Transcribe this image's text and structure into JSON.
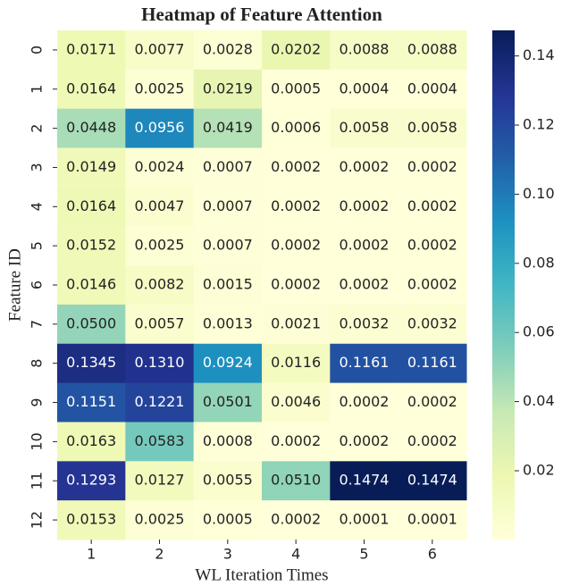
{
  "chart_data": {
    "type": "heatmap",
    "title": "Heatmap of Feature Attention",
    "xlabel": "WL Iteration Times",
    "ylabel": "Feature ID",
    "x_categories": [
      "1",
      "2",
      "3",
      "4",
      "5",
      "6"
    ],
    "y_categories": [
      "0",
      "1",
      "2",
      "3",
      "4",
      "5",
      "6",
      "7",
      "8",
      "9",
      "10",
      "11",
      "12"
    ],
    "values": [
      [
        0.0171,
        0.0077,
        0.0028,
        0.0202,
        0.0088,
        0.0088
      ],
      [
        0.0164,
        0.0025,
        0.0219,
        0.0005,
        0.0004,
        0.0004
      ],
      [
        0.0448,
        0.0956,
        0.0419,
        0.0006,
        0.0058,
        0.0058
      ],
      [
        0.0149,
        0.0024,
        0.0007,
        0.0002,
        0.0002,
        0.0002
      ],
      [
        0.0164,
        0.0047,
        0.0007,
        0.0002,
        0.0002,
        0.0002
      ],
      [
        0.0152,
        0.0025,
        0.0007,
        0.0002,
        0.0002,
        0.0002
      ],
      [
        0.0146,
        0.0082,
        0.0015,
        0.0002,
        0.0002,
        0.0002
      ],
      [
        0.05,
        0.0057,
        0.0013,
        0.0021,
        0.0032,
        0.0032
      ],
      [
        0.1345,
        0.131,
        0.0924,
        0.0116,
        0.1161,
        0.1161
      ],
      [
        0.1151,
        0.1221,
        0.0501,
        0.0046,
        0.0002,
        0.0002
      ],
      [
        0.0163,
        0.0583,
        0.0008,
        0.0002,
        0.0002,
        0.0002
      ],
      [
        0.1293,
        0.0127,
        0.0055,
        0.051,
        0.1474,
        0.1474
      ],
      [
        0.0153,
        0.0025,
        0.0005,
        0.0002,
        0.0001,
        0.0001
      ]
    ],
    "value_labels": [
      [
        "0.0171",
        "0.0077",
        "0.0028",
        "0.0202",
        "0.0088",
        "0.0088"
      ],
      [
        "0.0164",
        "0.0025",
        "0.0219",
        "0.0005",
        "0.0004",
        "0.0004"
      ],
      [
        "0.0448",
        "0.0956",
        "0.0419",
        "0.0006",
        "0.0058",
        "0.0058"
      ],
      [
        "0.0149",
        "0.0024",
        "0.0007",
        "0.0002",
        "0.0002",
        "0.0002"
      ],
      [
        "0.0164",
        "0.0047",
        "0.0007",
        "0.0002",
        "0.0002",
        "0.0002"
      ],
      [
        "0.0152",
        "0.0025",
        "0.0007",
        "0.0002",
        "0.0002",
        "0.0002"
      ],
      [
        "0.0146",
        "0.0082",
        "0.0015",
        "0.0002",
        "0.0002",
        "0.0002"
      ],
      [
        "0.0500",
        "0.0057",
        "0.0013",
        "0.0021",
        "0.0032",
        "0.0032"
      ],
      [
        "0.1345",
        "0.1310",
        "0.0924",
        "0.0116",
        "0.1161",
        "0.1161"
      ],
      [
        "0.1151",
        "0.1221",
        "0.0501",
        "0.0046",
        "0.0002",
        "0.0002"
      ],
      [
        "0.0163",
        "0.0583",
        "0.0008",
        "0.0002",
        "0.0002",
        "0.0002"
      ],
      [
        "0.1293",
        "0.0127",
        "0.0055",
        "0.0510",
        "0.1474",
        "0.1474"
      ],
      [
        "0.0153",
        "0.0025",
        "0.0005",
        "0.0002",
        "0.0001",
        "0.0001"
      ]
    ],
    "clim": [
      0.0001,
      0.1474
    ],
    "cticks": [
      0.02,
      0.04,
      0.06,
      0.08,
      {
        "value": 0.1,
        "label": "0.10"
      },
      0.12,
      0.14
    ],
    "colorscale": [
      "#ffffd9",
      "#edf8b1",
      "#c7e9b4",
      "#7fcdbb",
      "#41b6c4",
      "#1d91c0",
      "#225ea8",
      "#253494",
      "#081d58"
    ]
  }
}
